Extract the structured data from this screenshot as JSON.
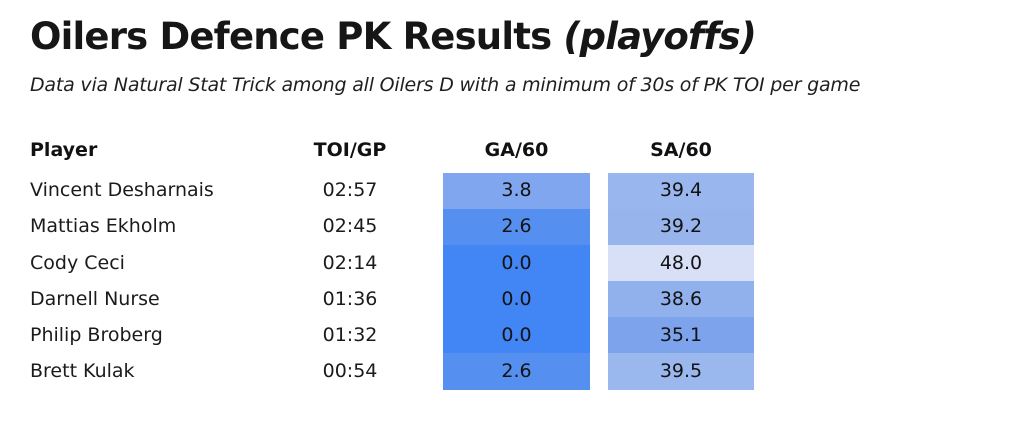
{
  "header": {
    "title": "Oilers Defence PK Results ",
    "title_emphasis": "(playoffs)",
    "subtitle": "Data via Natural Stat Trick among all Oilers D with a minimum of 30s of PK TOI per game"
  },
  "table": {
    "columns": {
      "player": "Player",
      "toi_gp": "TOI/GP",
      "ga60": "GA/60",
      "sa60": "SA/60"
    },
    "rows": [
      {
        "player": "Vincent Desharnais",
        "toi_gp": "02:57",
        "ga60": "3.8",
        "ga_color": "#7FA6EF",
        "sa60": "39.4",
        "sa_color": "#9AB6EE"
      },
      {
        "player": "Mattias Ekholm",
        "toi_gp": "02:45",
        "ga60": "2.6",
        "ga_color": "#5590F1",
        "sa60": "39.2",
        "sa_color": "#97B4ED"
      },
      {
        "player": "Cody Ceci",
        "toi_gp": "02:14",
        "ga60": "0.0",
        "ga_color": "#4285F4",
        "sa60": "48.0",
        "sa_color": "#D7E0F6"
      },
      {
        "player": "Darnell Nurse",
        "toi_gp": "01:36",
        "ga60": "0.0",
        "ga_color": "#4285F4",
        "sa60": "38.6",
        "sa_color": "#91B1ED"
      },
      {
        "player": "Philip Broberg",
        "toi_gp": "01:32",
        "ga60": "0.0",
        "ga_color": "#4285F4",
        "sa60": "35.1",
        "sa_color": "#7CA3EC"
      },
      {
        "player": "Brett Kulak",
        "toi_gp": "00:54",
        "ga60": "2.6",
        "ga_color": "#5590F1",
        "sa60": "39.5",
        "sa_color": "#9AB7EE"
      }
    ]
  },
  "colors": {
    "heat_low_ga": "#4285F4",
    "heat_high_sa": "#D7E0F6",
    "text": "#1b1b1b",
    "background": "#ffffff"
  },
  "chart_data": {
    "type": "table",
    "title": "Oilers Defence PK Results (playoffs)",
    "subtitle": "Data via Natural Stat Trick among all Oilers D with a minimum of 30s of PK TOI per game",
    "columns": [
      "Player",
      "TOI/GP",
      "GA/60",
      "SA/60"
    ],
    "rows": [
      [
        "Vincent Desharnais",
        "02:57",
        3.8,
        39.4
      ],
      [
        "Mattias Ekholm",
        "02:45",
        2.6,
        39.2
      ],
      [
        "Cody Ceci",
        "02:14",
        0.0,
        48.0
      ],
      [
        "Darnell Nurse",
        "01:36",
        0.0,
        38.6
      ],
      [
        "Philip Broberg",
        "01:32",
        0.0,
        35.1
      ],
      [
        "Brett Kulak",
        "00:54",
        2.6,
        39.5
      ]
    ],
    "notes": "GA/60 and SA/60 columns are heat-shaded blue: darker/saturated blue = lower value, pale blue = higher value"
  }
}
